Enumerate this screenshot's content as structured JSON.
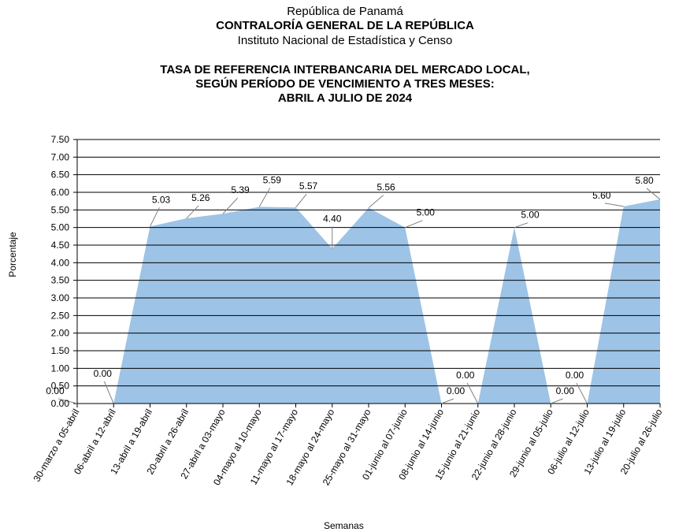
{
  "header": {
    "line1": "República de Panamá",
    "line2": "CONTRALORÍA GENERAL DE LA REPÚBLICA",
    "line3": "Instituto  Nacional de Estadística  y Censo"
  },
  "chart_data": {
    "type": "area",
    "title_lines": [
      "TASA DE REFERENCIA INTERBANCARIA DEL MERCADO LOCAL,",
      "SEGÚN PERÍODO DE VENCIMIENTO A TRES MESES:",
      "ABRIL A JULIO DE 2024"
    ],
    "xlabel": "Semanas",
    "ylabel": "Porcentaje",
    "ylim": [
      0,
      7.5
    ],
    "yticks": [
      "0.00",
      "0.50",
      "1.00",
      "1.50",
      "2.00",
      "2.50",
      "3.00",
      "3.50",
      "4.00",
      "4.50",
      "5.00",
      "5.50",
      "6.00",
      "6.50",
      "7.00",
      "7.50"
    ],
    "grid": true,
    "fill_color": "#9dc3e6",
    "categories": [
      "30-marzo a 05-abril",
      "06-abril a 12-abril",
      "13-abril a 19-abril",
      "20-abril a 26-abril",
      "27-abril a 03-mayo",
      "04-mayo al 10-mayo",
      "11-mayo al 17-mayo",
      "18-mayo al 24-mayo",
      "25-mayo al 31-mayo",
      "01-junio al 07-junio",
      "08-junio al 14-junio",
      "15-junio al 21-junio",
      "22-junio al 28-junio",
      "29-junio al 05-julio",
      "06-julio al 12-julio",
      "13-julio al 19-julio",
      "20-julio al 26-julio"
    ],
    "values": [
      0,
      0,
      5.03,
      5.26,
      5.39,
      5.59,
      5.57,
      4.4,
      5.56,
      5.0,
      0,
      0,
      5.0,
      0,
      0,
      5.6,
      5.8
    ],
    "data_labels": [
      "0.00",
      "0.00",
      "5.03",
      "5.26",
      "5.39",
      "5.59",
      "5.57",
      "4.40",
      "5.56",
      "5.00",
      "0.00",
      "0.00",
      "5.00",
      "0.00",
      "0.00",
      "5.60",
      "5.80"
    ]
  }
}
